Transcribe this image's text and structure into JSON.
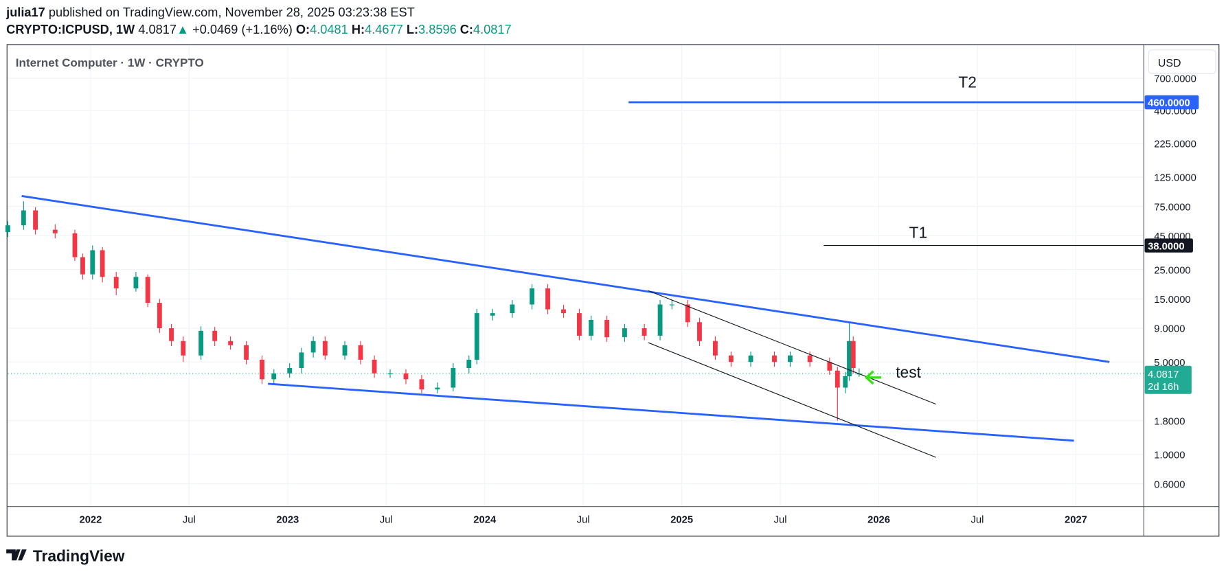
{
  "header": {
    "author": "julia17",
    "published": "published on TradingView.com, November 28, 2025 03:23:38 EST",
    "symbol": "CRYPTO:ICPUSD, 1W",
    "change": "+0.0469 (+1.16%)",
    "ohlc_labels": [
      "O:",
      "H:",
      "L:",
      "C:"
    ]
  },
  "footer": {
    "brand": "TradingView"
  },
  "chart_data": {
    "type": "candlestick",
    "title": "Internet Computer · 1W · CRYPTO",
    "currency": "USD",
    "log_scale": true,
    "grid": true,
    "up_color": "#089981",
    "down_color": "#f23645",
    "last_color": "#22ab94",
    "countdown": "2d 16h",
    "x": [
      2021.58,
      2021.66,
      2021.72,
      2021.82,
      2021.92,
      2021.96,
      2022.01,
      2022.06,
      2022.13,
      2022.23,
      2022.29,
      2022.35,
      2022.41,
      2022.47,
      2022.56,
      2022.63,
      2022.71,
      2022.79,
      2022.87,
      2022.93,
      2023.01,
      2023.07,
      2023.13,
      2023.19,
      2023.29,
      2023.37,
      2023.44,
      2023.52,
      2023.6,
      2023.68,
      2023.76,
      2023.84,
      2023.92,
      2023.96,
      2024.04,
      2024.14,
      2024.24,
      2024.32,
      2024.4,
      2024.48,
      2024.54,
      2024.62,
      2024.71,
      2024.81,
      2024.89,
      2024.95,
      2025.03,
      2025.09,
      2025.17,
      2025.25,
      2025.35,
      2025.47,
      2025.55,
      2025.65,
      2025.75,
      2025.79,
      2025.83,
      2025.85,
      2025.87,
      2025.9
    ],
    "open": [
      48,
      54,
      70,
      50,
      47,
      31,
      23,
      35,
      22,
      18,
      22,
      14,
      9,
      7.2,
      5.6,
      8.6,
      7.2,
      6.7,
      5.2,
      3.7,
      4.1,
      4.5,
      5.9,
      7.2,
      5.6,
      6.7,
      5.2,
      4.1,
      4.1,
      3.7,
      3.1,
      3.2,
      4.5,
      5.2,
      11.2,
      11.7,
      13.6,
      18,
      12.5,
      11.7,
      7.9,
      10.4,
      7.7,
      9,
      7.9,
      13.6,
      13.6,
      10,
      7.2,
      5.6,
      5.0,
      5.6,
      5.0,
      5.6,
      5.0,
      4.3,
      3.2,
      3.9,
      7.2,
      4.0481
    ],
    "high": [
      58,
      82,
      74,
      55,
      50,
      33,
      38,
      37,
      24,
      24,
      23,
      15,
      9.7,
      7.8,
      9.3,
      9.2,
      7.8,
      7.2,
      5.6,
      4.4,
      4.9,
      6.4,
      7.8,
      7.8,
      7.2,
      7.2,
      5.6,
      4.4,
      4.4,
      4.0,
      3.5,
      4.9,
      5.6,
      12.6,
      12.6,
      14.7,
      19.4,
      19.4,
      13.5,
      12.6,
      11.2,
      11.2,
      9.7,
      9.7,
      14.7,
      14.7,
      14.7,
      10.8,
      7.8,
      6.0,
      6.0,
      6.0,
      6.0,
      6.0,
      5.4,
      4.6,
      4.2,
      10,
      7.8,
      4.4677
    ],
    "low": [
      44,
      50,
      46,
      43,
      29,
      21,
      21,
      20,
      16,
      17,
      13,
      8.3,
      6.6,
      5.0,
      5.2,
      6.6,
      6.2,
      4.8,
      3.4,
      3.4,
      3.8,
      4.1,
      5.4,
      5.2,
      5.2,
      4.8,
      3.8,
      3.8,
      3.4,
      2.9,
      2.9,
      3.0,
      4.1,
      4.8,
      10.3,
      10.8,
      12.5,
      11.5,
      10.8,
      7.3,
      7.3,
      7.1,
      7.1,
      7.3,
      7.3,
      12.5,
      9.2,
      6.6,
      5.2,
      4.6,
      4.6,
      4.6,
      4.6,
      4.6,
      4.0,
      1.8,
      2.9,
      3.6,
      4.1,
      3.8596
    ],
    "close": [
      54,
      70,
      50,
      47,
      31,
      23,
      35,
      22,
      18,
      22,
      14,
      9,
      7.2,
      5.6,
      8.6,
      7.2,
      6.7,
      5.2,
      3.7,
      4.1,
      4.5,
      5.9,
      7.2,
      5.6,
      6.7,
      5.2,
      4.1,
      4.1,
      3.7,
      3.1,
      3.2,
      4.5,
      5.2,
      11.7,
      11.7,
      13.6,
      18,
      12.5,
      11.7,
      7.9,
      10.4,
      7.7,
      9,
      7.9,
      13.6,
      13.6,
      10,
      7.2,
      5.6,
      5.0,
      5.6,
      5.0,
      5.6,
      5.0,
      4.3,
      3.2,
      3.9,
      7.2,
      4.5,
      4.0817
    ],
    "xlim": [
      2021.58,
      2027.345
    ],
    "xticks": [
      2022,
      {
        "value": 2022.5,
        "label": "Jul"
      },
      2023,
      {
        "value": 2023.5,
        "label": "Jul"
      },
      2024,
      {
        "value": 2024.5,
        "label": "Jul"
      },
      2025,
      {
        "value": 2025.5,
        "label": "Jul"
      },
      2026,
      {
        "value": 2026.5,
        "label": "Jul"
      },
      2027
    ],
    "ylim": [
      0.404,
      1240
    ],
    "yticks": [
      {
        "value": 700,
        "label": "700.0000"
      },
      {
        "value": 400,
        "label": "400.0000"
      },
      {
        "value": 225,
        "label": "225.0000"
      },
      {
        "value": 125,
        "label": "125.0000"
      },
      {
        "value": 75,
        "label": "75.0000"
      },
      {
        "value": 45,
        "label": "45.0000"
      },
      {
        "value": 25,
        "label": "25.0000"
      },
      {
        "value": 15,
        "label": "15.0000"
      },
      {
        "value": 9,
        "label": "9.0000"
      },
      {
        "value": 5,
        "label": "5.0000"
      },
      {
        "value": 1.8,
        "label": "1.8000"
      },
      {
        "value": 1,
        "label": "1.0000"
      },
      {
        "value": 0.6,
        "label": "0.6000"
      }
    ],
    "hlines": [
      {
        "value": 460,
        "label": "460.0000",
        "from": 2024.73,
        "color": "#2962ff"
      },
      {
        "value": 38,
        "label": "38.0000",
        "from": 2025.72,
        "color": "#131722"
      }
    ],
    "trendlines": [
      {
        "x": [
          2021.65,
          2027.17
        ],
        "y": [
          90,
          5.0
        ],
        "color": "#2962ff"
      },
      {
        "x": [
          2022.9,
          2026.99
        ],
        "y": [
          3.42,
          1.27
        ],
        "color": "#2962ff"
      },
      {
        "x": [
          2024.83,
          2026.29
        ],
        "y": [
          17.3,
          2.4
        ],
        "color": "#131722"
      },
      {
        "x": [
          2024.83,
          2026.29
        ],
        "y": [
          7.0,
          0.95
        ],
        "color": "#131722"
      }
    ],
    "annotations": [
      {
        "text": "T2",
        "x": 2026.45,
        "y": 645
      },
      {
        "text": "T1",
        "x": 2026.2,
        "y": 47
      },
      {
        "text": "test",
        "x": 2026.15,
        "y": 4.14
      }
    ]
  }
}
